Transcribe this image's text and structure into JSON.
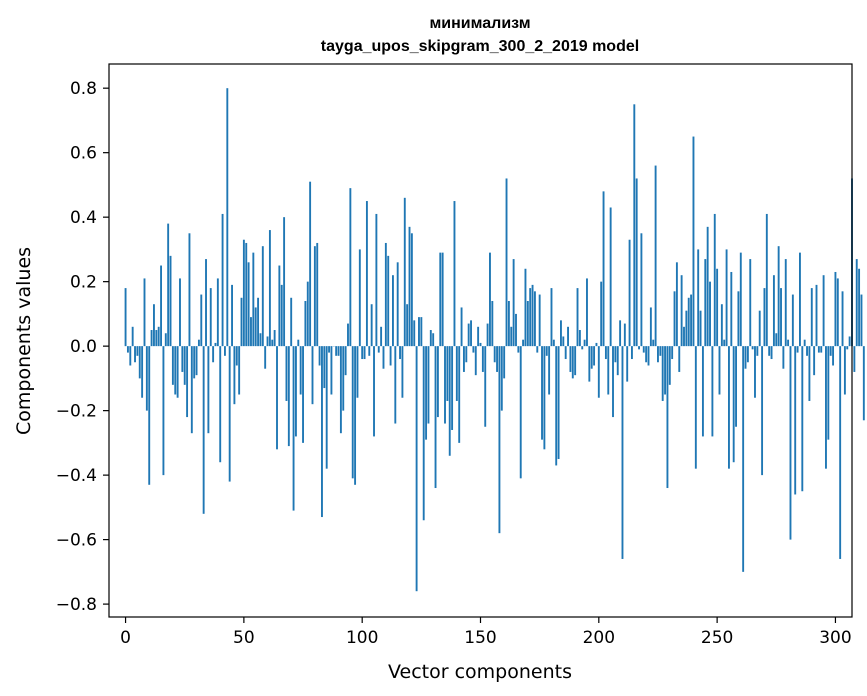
{
  "chart_data": {
    "type": "bar",
    "title_line1": "минимализм",
    "title_line2": "tayga_upos_skipgram_300_2_2019 model",
    "xlabel": "Vector components",
    "ylabel": "Components values",
    "xlim": [
      -7,
      307
    ],
    "ylim": [
      -0.84,
      0.875
    ],
    "xticks": [
      0,
      50,
      100,
      150,
      200,
      250,
      300
    ],
    "xtick_labels": [
      "0",
      "50",
      "100",
      "150",
      "200",
      "250",
      "300"
    ],
    "yticks": [
      0.8,
      0.6,
      0.4,
      0.2,
      0.0,
      -0.2,
      -0.4,
      -0.6,
      -0.8
    ],
    "ytick_labels": [
      "0.8",
      "0.6",
      "0.4",
      "0.2",
      "0.0",
      "−0.2",
      "−0.4",
      "−0.6",
      "−0.8"
    ],
    "bar_color": "#1f77b4",
    "grid": false,
    "values": [
      0.18,
      -0.02,
      -0.06,
      0.06,
      -0.05,
      -0.03,
      -0.1,
      -0.16,
      0.21,
      -0.2,
      -0.43,
      0.05,
      0.13,
      0.05,
      0.06,
      0.25,
      -0.4,
      0.04,
      0.38,
      0.28,
      -0.12,
      -0.15,
      -0.16,
      0.21,
      -0.08,
      -0.12,
      -0.22,
      0.35,
      -0.27,
      -0.1,
      -0.09,
      0.02,
      0.16,
      -0.52,
      0.27,
      -0.27,
      0.18,
      -0.05,
      0.01,
      0.21,
      -0.36,
      0.41,
      -0.03,
      0.8,
      -0.42,
      0.19,
      -0.18,
      -0.06,
      -0.15,
      0.15,
      0.33,
      0.32,
      0.26,
      0.09,
      0.29,
      0.12,
      0.15,
      0.04,
      0.31,
      -0.07,
      0.03,
      0.36,
      0.02,
      0.05,
      -0.32,
      0.25,
      0.19,
      0.4,
      -0.17,
      -0.31,
      0.15,
      -0.51,
      -0.28,
      0.02,
      -0.15,
      -0.3,
      0.14,
      0.2,
      0.51,
      -0.18,
      0.31,
      0.32,
      -0.06,
      -0.53,
      -0.13,
      -0.38,
      -0.02,
      -0.15,
      0.0,
      -0.03,
      -0.03,
      -0.27,
      -0.2,
      -0.09,
      0.07,
      0.49,
      -0.41,
      -0.43,
      -0.16,
      0.3,
      -0.04,
      -0.04,
      0.45,
      -0.03,
      0.13,
      -0.28,
      0.41,
      -0.02,
      0.06,
      -0.07,
      0.32,
      0.28,
      -0.06,
      0.22,
      -0.24,
      0.26,
      -0.04,
      -0.16,
      0.46,
      0.13,
      0.37,
      0.35,
      0.08,
      -0.76,
      0.09,
      0.09,
      -0.54,
      -0.29,
      -0.24,
      0.05,
      0.04,
      -0.44,
      -0.22,
      0.29,
      0.29,
      -0.24,
      -0.17,
      -0.34,
      -0.26,
      0.45,
      -0.17,
      -0.3,
      0.12,
      -0.08,
      -0.05,
      0.07,
      0.08,
      -0.02,
      -0.09,
      0.06,
      0.01,
      -0.08,
      -0.25,
      0.07,
      0.29,
      0.14,
      -0.05,
      -0.08,
      -0.58,
      -0.2,
      -0.1,
      0.52,
      0.14,
      0.06,
      0.27,
      0.1,
      -0.02,
      -0.41,
      0.02,
      0.24,
      0.14,
      0.18,
      0.19,
      0.17,
      -0.02,
      0.16,
      -0.29,
      -0.32,
      -0.03,
      -0.15,
      0.18,
      0.02,
      -0.37,
      -0.35,
      0.08,
      0.03,
      -0.04,
      0.06,
      -0.08,
      -0.1,
      -0.09,
      0.18,
      0.05,
      -0.01,
      0.02,
      0.21,
      -0.11,
      -0.07,
      -0.06,
      0.01,
      -0.16,
      0.2,
      0.48,
      -0.04,
      -0.15,
      0.43,
      -0.22,
      -0.05,
      -0.09,
      0.08,
      -0.66,
      0.07,
      -0.11,
      0.33,
      -0.04,
      0.75,
      0.52,
      -0.01,
      0.35,
      -0.02,
      -0.05,
      -0.06,
      0.12,
      0.02,
      0.56,
      -0.05,
      -0.03,
      -0.17,
      -0.15,
      -0.44,
      -0.12,
      -0.04,
      0.17,
      0.26,
      -0.08,
      0.22,
      0.06,
      0.11,
      0.15,
      0.16,
      0.65,
      -0.38,
      0.3,
      0.11,
      -0.28,
      0.27,
      0.37,
      0.2,
      -0.28,
      0.41,
      0.24,
      -0.15,
      0.13,
      0.02,
      0.3,
      -0.38,
      0.23,
      -0.36,
      -0.25,
      0.17,
      0.29,
      -0.7,
      -0.07,
      -0.05,
      0.27,
      -0.01,
      -0.16,
      -0.03,
      0.11,
      -0.4,
      0.18,
      0.41,
      -0.03,
      -0.04,
      0.22,
      0.04,
      0.31,
      0.18,
      -0.07,
      0.27,
      0.02,
      -0.6,
      0.16,
      -0.46,
      -0.02,
      0.29,
      -0.45,
      0.02,
      -0.03,
      -0.17,
      0.18,
      -0.09,
      0.19,
      -0.02,
      -0.02,
      0.22,
      -0.38,
      -0.29,
      -0.03,
      -0.06,
      0.23,
      0.21,
      -0.66,
      0.17,
      -0.15,
      -0.01,
      0.03,
      0.52,
      -0.08,
      0.27,
      0.24,
      0.16,
      -0.23
    ]
  }
}
